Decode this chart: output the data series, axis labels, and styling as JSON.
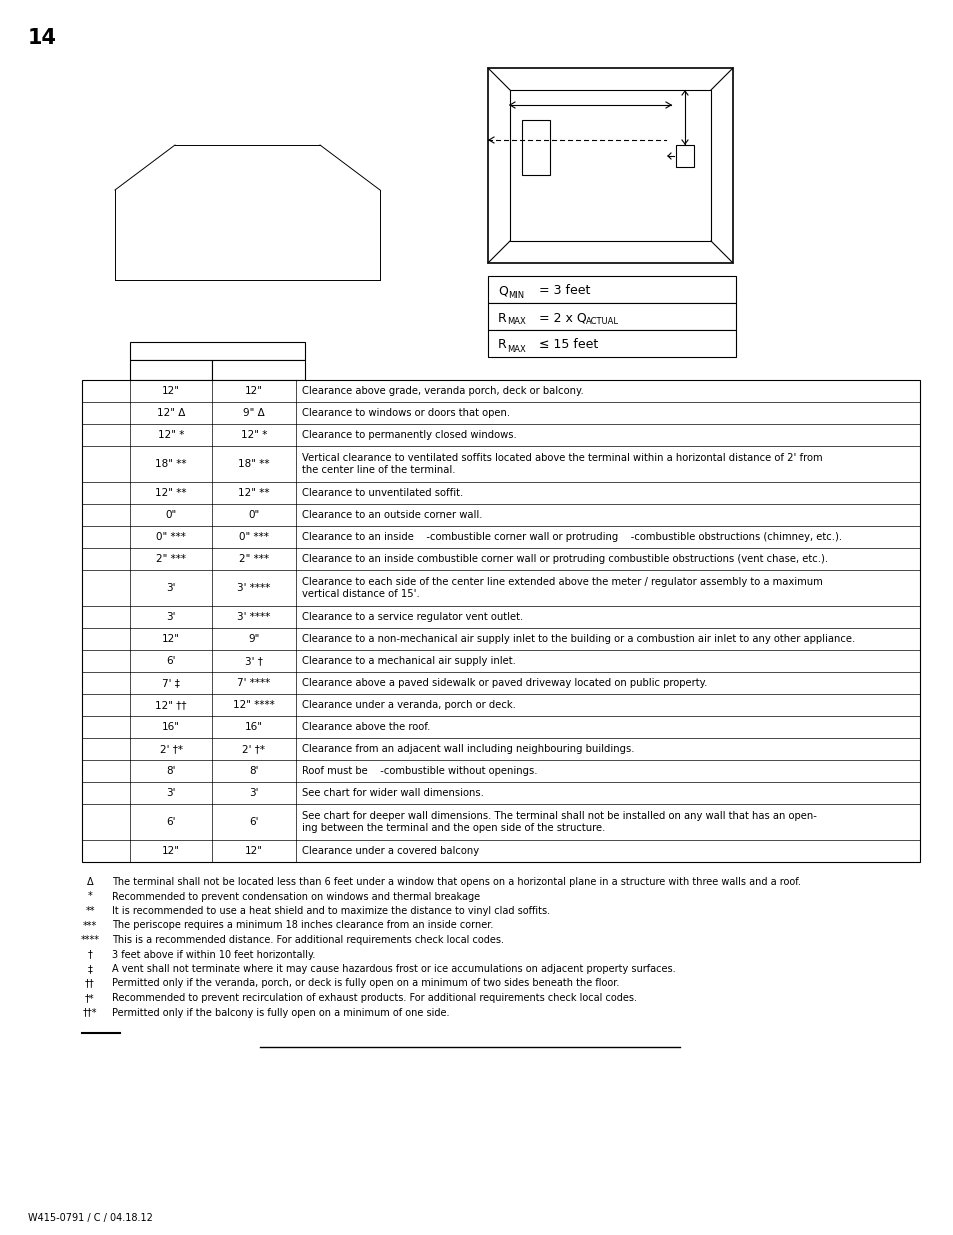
{
  "page_number": "14",
  "background_color": "#ffffff",
  "table_rows": [
    [
      "12\"",
      "12\"",
      "Clearance above grade, veranda porch, deck or balcony.",
      1
    ],
    [
      "12\" Δ",
      "9\" Δ",
      "Clearance to windows or doors that open.",
      1
    ],
    [
      "12\" *",
      "12\" *",
      "Clearance to permanently closed windows.",
      1
    ],
    [
      "18\" **",
      "18\" **",
      "Vertical clearance to ventilated soffits located above the terminal within a horizontal distance of 2' from\nthe center line of the terminal.",
      2
    ],
    [
      "12\" **",
      "12\" **",
      "Clearance to unventilated soffit.",
      1
    ],
    [
      "0\"",
      "0\"",
      "Clearance to an outside corner wall.",
      1
    ],
    [
      "0\" ***",
      "0\" ***",
      "Clearance to an inside    -combustible corner wall or protruding    -combustible obstructions (chimney, etc.).",
      1
    ],
    [
      "2\" ***",
      "2\" ***",
      "Clearance to an inside combustible corner wall or protruding combustible obstructions (vent chase, etc.).",
      1
    ],
    [
      "3'",
      "3' ****",
      "Clearance to each side of the center line extended above the meter / regulator assembly to a maximum\nvertical distance of 15'.",
      2
    ],
    [
      "3'",
      "3' ****",
      "Clearance to a service regulator vent outlet.",
      1
    ],
    [
      "12\"",
      "9\"",
      "Clearance to a non-mechanical air supply inlet to the building or a combustion air inlet to any other appliance.",
      1
    ],
    [
      "6'",
      "3' †",
      "Clearance to a mechanical air supply inlet.",
      1
    ],
    [
      "7' ‡",
      "7' ****",
      "Clearance above a paved sidewalk or paved driveway located on public property.",
      1
    ],
    [
      "12\" ††",
      "12\" ****",
      "Clearance under a veranda, porch or deck.",
      1
    ],
    [
      "16\"",
      "16\"",
      "Clearance above the roof.",
      1
    ],
    [
      "2' †*",
      "2' †*",
      "Clearance from an adjacent wall including neighbouring buildings.",
      1
    ],
    [
      "8'",
      "8'",
      "Roof must be    -combustible without openings.",
      1
    ],
    [
      "3'",
      "3'",
      "See chart for wider wall dimensions.",
      1
    ],
    [
      "6'",
      "6'",
      "See chart for deeper wall dimensions. The terminal shall not be installed on any wall that has an open-\ning between the terminal and the open side of the structure.",
      2
    ],
    [
      "12\"",
      "12\"",
      "Clearance under a covered balcony",
      1
    ]
  ],
  "footnotes": [
    [
      "Δ",
      "The terminal shall not be located less than 6 feet under a window that opens on a horizontal plane in a structure with three walls and a roof."
    ],
    [
      "*",
      "Recommended to prevent condensation on windows and thermal breakage"
    ],
    [
      "**",
      "It is recommended to use a heat shield and to maximize the distance to vinyl clad soffits."
    ],
    [
      "***",
      "The periscope requires a minimum 18 inches clearance from an inside corner."
    ],
    [
      "****",
      "This is a recommended distance. For additional requirements check local codes."
    ],
    [
      "†",
      "3 feet above if within 10 feet horizontally."
    ],
    [
      "‡",
      "A vent shall not terminate where it may cause hazardous frost or ice accumulations on adjacent property surfaces."
    ],
    [
      "††",
      "Permitted only if the veranda, porch, or deck is fully open on a minimum of two sides beneath the floor."
    ],
    [
      "†*",
      "Recommended to prevent recirculation of exhaust products. For additional requirements check local codes."
    ],
    [
      "††*",
      "Permitted only if the balcony is fully open on a minimum of one side."
    ]
  ],
  "footer_text": "W415-0791 / C / 04.18.12"
}
